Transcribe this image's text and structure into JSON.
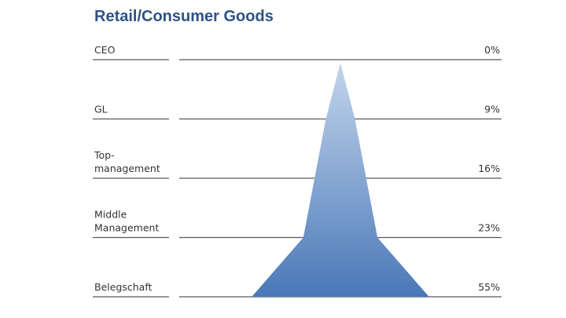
{
  "chart_data": {
    "type": "pyramid",
    "title": "Retail/Consumer Goods",
    "categories": [
      "CEO",
      "GL",
      "Top-\nmanagement",
      "Middle\nManagement",
      "Belegschaft"
    ],
    "values": [
      0,
      9,
      16,
      23,
      55
    ],
    "value_labels": [
      "0%",
      "9%",
      "16%",
      "23%",
      "55%"
    ],
    "color": "#4a78b8"
  }
}
